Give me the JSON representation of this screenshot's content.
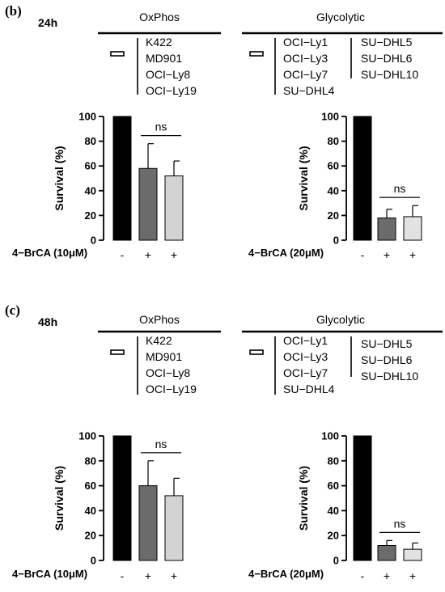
{
  "panels": [
    {
      "label": "(b)",
      "time": "24h",
      "groups": [
        {
          "title": "OxPhos",
          "lines_col1": [
            "K422",
            "MD901",
            "OCI−Ly8",
            "OCI−Ly19"
          ],
          "lines_col2": []
        },
        {
          "title": "Glycolytic",
          "lines_col1": [
            "OCI−Ly1",
            "OCI−Ly3",
            "OCI−Ly7",
            "SU−DHL4"
          ],
          "lines_col2": [
            "SU−DHL5",
            "SU−DHL6",
            "SU−DHL10"
          ]
        }
      ]
    },
    {
      "label": "(c)",
      "time": "48h",
      "groups": [
        {
          "title": "OxPhos",
          "lines_col1": [
            "K422",
            "MD901",
            "OCI−Ly8",
            "OCI−Ly19"
          ],
          "lines_col2": []
        },
        {
          "title": "Glycolytic",
          "lines_col1": [
            "OCI−Ly1",
            "OCI−Ly3",
            "OCI−Ly7",
            "SU−DHL4"
          ],
          "lines_col2": [
            "SU−DHL5",
            "SU−DHL6",
            "SU−DHL10"
          ]
        }
      ]
    }
  ],
  "chart_data": [
    {
      "type": "bar",
      "panel": "(b)",
      "group": "OxPhos",
      "treatment_label": "4−BrCA (10μM)",
      "categories": [
        "-",
        "+",
        "+"
      ],
      "values": [
        100,
        58,
        52
      ],
      "errors": [
        0,
        20,
        12
      ],
      "bar_colors": [
        "#000000",
        "#6b6b6b",
        "#d3d3d3"
      ],
      "ylabel": "Survival (%)",
      "ylim": [
        0,
        100
      ],
      "yticks": [
        "0",
        "20",
        "40",
        "60",
        "80",
        "100"
      ],
      "annotation": "ns"
    },
    {
      "type": "bar",
      "panel": "(b)",
      "group": "Glycolytic",
      "treatment_label": "4−BrCA (20μM)",
      "categories": [
        "-",
        "+",
        "+"
      ],
      "values": [
        100,
        18,
        19
      ],
      "errors": [
        0,
        7,
        9
      ],
      "bar_colors": [
        "#000000",
        "#6b6b6b",
        "#e2e2e2"
      ],
      "ylabel": "Survival (%)",
      "ylim": [
        0,
        100
      ],
      "yticks": [
        "0",
        "20",
        "40",
        "60",
        "80",
        "100"
      ],
      "annotation": "ns"
    },
    {
      "type": "bar",
      "panel": "(c)",
      "group": "OxPhos",
      "treatment_label": "4−BrCA (10μM)",
      "categories": [
        "-",
        "+",
        "+"
      ],
      "values": [
        100,
        60,
        52
      ],
      "errors": [
        0,
        20,
        14
      ],
      "bar_colors": [
        "#000000",
        "#6b6b6b",
        "#d3d3d3"
      ],
      "ylabel": "Survival (%)",
      "ylim": [
        0,
        100
      ],
      "yticks": [
        "0",
        "20",
        "40",
        "60",
        "80",
        "100"
      ],
      "annotation": "ns"
    },
    {
      "type": "bar",
      "panel": "(c)",
      "group": "Glycolytic",
      "treatment_label": "4−BrCA (20μM)",
      "categories": [
        "-",
        "+",
        "+"
      ],
      "values": [
        100,
        12,
        9
      ],
      "errors": [
        0,
        4,
        5
      ],
      "bar_colors": [
        "#000000",
        "#6b6b6b",
        "#e2e2e2"
      ],
      "ylabel": "Survival (%)",
      "ylim": [
        0,
        100
      ],
      "yticks": [
        "0",
        "20",
        "40",
        "60",
        "80",
        "100"
      ],
      "annotation": "ns"
    }
  ]
}
